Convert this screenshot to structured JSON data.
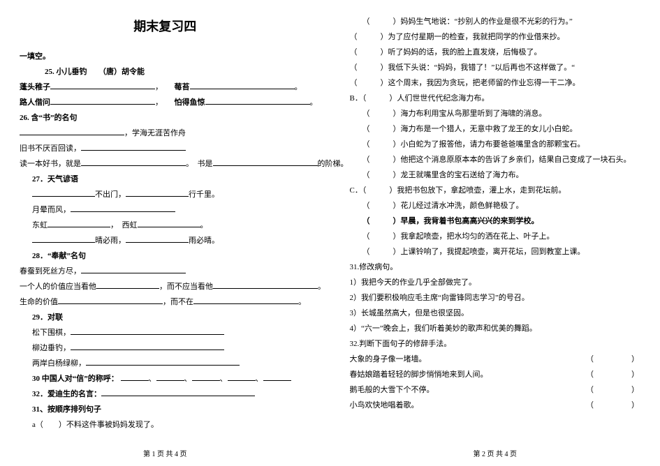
{
  "title": "期末复习四",
  "left": {
    "h1": "一填空。",
    "poem_head": "25. 小儿垂钓　　（唐）胡令能",
    "poem_l1a": "蓬头稚子",
    "poem_l1b": "，",
    "poem_l1c": "莓苔",
    "poem_l1d": "。",
    "poem_l2a": "路人借问",
    "poem_l2b": "，",
    "poem_l2c": "怕得鱼惊",
    "poem_l2d": "。",
    "s26": "26. 含“书”的名句",
    "s26_l1b": "，学海无涯苦作舟",
    "s26_l2a": "旧书不厌百回读，",
    "s26_l3a": "读一本好书，就是",
    "s26_l3b": "。　书是",
    "s26_l3c": "的阶梯。",
    "s27": "27．天气谚语",
    "s27_l1b": "不出门，",
    "s27_l1c": "行千里。",
    "s27_l2a": "月晕而风，",
    "s27_l3a": "东虹",
    "s27_l3b": "，　西虹",
    "s27_l3c": "。",
    "s27_l4b": "晴必雨，",
    "s27_l4c": "雨必晴。",
    "s28": "28．“奉献”名句",
    "s28_l1a": "春蚕到死丝方尽，",
    "s28_l2a": "一个人的价值应当看他",
    "s28_l2b": "，而不应当看他",
    "s28_l2c": "。",
    "s28_l3a": "生命的价值",
    "s28_l3b": "，而不在",
    "s28_l3c": "。",
    "s29": "29．对联",
    "s29_l1a": "松下围棋，",
    "s29_l2a": "柳边垂钓，",
    "s29_l3a": "两岸白杨绿柳，",
    "s30": "30 中国人对“信”的称呼：",
    "s32": "32．爱迪生的名言：",
    "s31": "31、按顺序排列句子",
    "s31_a": "a（　　）不料这件事被妈妈发现了。",
    "footer": "第 1 页 共 4 页"
  },
  "right": {
    "r1": "（　　　）妈妈生气地说：“抄别人的作业是很不光彩的行为。”",
    "r2": "（　　　）为了应付星期一的检查，我就把同学的作业借来抄。",
    "r3": "（　　　）听了妈妈的话，我的脸上直发烧，后悔极了。",
    "r4": "（　　　）我低下头说：“妈妈，我错了！”以后再也不这样做了。“",
    "r5": "（　　　）这个周末，我因为贪玩，把老师留的作业忘得一干二净。",
    "rb": "B．（　　　）人们世世代代纪念海力布。",
    "rb2": "（　　　）海力布利用宝从鸟那里听到了海啸的消息。",
    "rb3": "（　　　）海力布是一个猎人，无意中救了龙王的女儿小白蛇。",
    "rb4": "（　　　）小白蛇为了报答他，请力布要爸爸嘴里含的那颗宝石。",
    "rb5": "（　　　）他把这个消息原原本本的告诉了乡亲们，结果自己变成了一块石头。",
    "rb6": "（　　　）龙王就嘴里含的宝石送给了海力布。",
    "rc": "C．（　　　）我把书包放下，拿起喷壶，灌上水，走到花坛前。",
    "rc2": "（　　　）花儿经过清水冲洗，颜色鲜艳极了。",
    "rc3": "（　　　）早晨，我背着书包高高兴兴的来到学校。",
    "rc4": "（　　　）我拿起喷壶，把水均匀的洒在花上、叶子上。",
    "rc5": "（　　　）上课铃响了，我提起喷壶，离开花坛，回到教室上课。",
    "s31b": "31.修改病句。",
    "b1": "1）我把今天的作业几乎全部做完了。",
    "b2": "2）我们要积极响应毛主席“向雷锋同志学习”的号召。",
    "b3": "3）长城虽然高大，但是也很坚固。",
    "b4": "4）“六一”晚会上，我们听着美妙的歌声和优美的舞蹈。",
    "s32b": "32.判断下面句子的修辞手法。",
    "j1a": "大象的身子像一堵墙。",
    "j2a": "春姑娘踏着轻轻的脚步悄悄地来到人间。",
    "j3a": "鹅毛般的大雪下个不停。",
    "j4a": "小鸟欢快地唱着歌。",
    "paren_tail": "（　　　　）",
    "footer": "第 2 页 共 4 页"
  }
}
